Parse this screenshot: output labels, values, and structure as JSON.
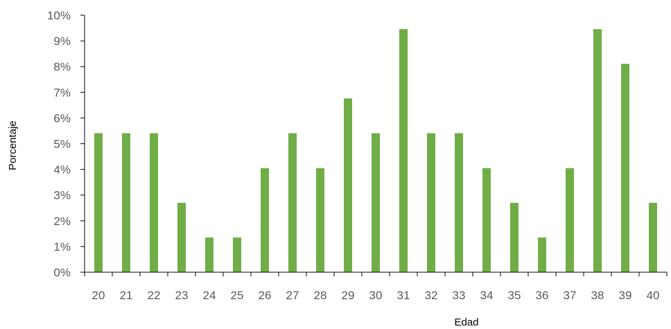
{
  "chart_data": {
    "type": "bar",
    "title": "",
    "xlabel": "Edad",
    "ylabel": "Porcentaje",
    "categories": [
      "20",
      "21",
      "22",
      "23",
      "24",
      "25",
      "26",
      "27",
      "28",
      "29",
      "30",
      "31",
      "32",
      "33",
      "34",
      "35",
      "36",
      "37",
      "38",
      "39",
      "40"
    ],
    "values": [
      5.41,
      5.41,
      5.41,
      2.7,
      1.35,
      1.35,
      4.05,
      5.41,
      4.05,
      6.76,
      5.41,
      9.46,
      5.41,
      5.41,
      4.05,
      2.7,
      1.35,
      4.05,
      9.46,
      8.11,
      2.7
    ],
    "value_unit": "%",
    "ylim": [
      0,
      10
    ],
    "y_ticks": [
      "0%",
      "1%",
      "2%",
      "3%",
      "4%",
      "5%",
      "6%",
      "7%",
      "8%",
      "9%",
      "10%"
    ],
    "grid": false,
    "legend": "none",
    "bar_color": "#70AD47",
    "axis_color": "#000000"
  }
}
